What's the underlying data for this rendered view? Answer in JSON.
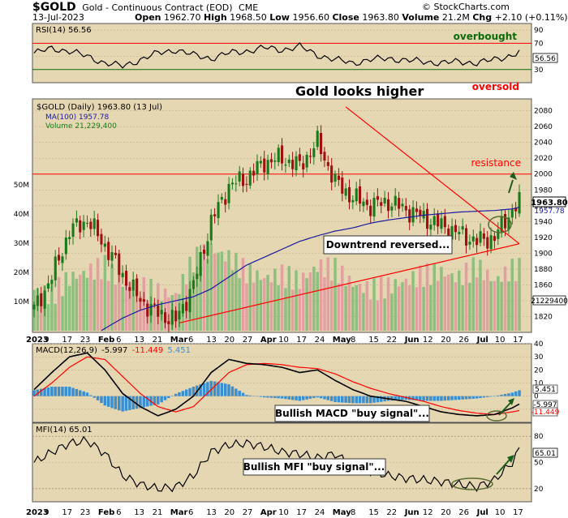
{
  "header": {
    "symbol": "$GOLD",
    "description": "Gold - Continuous Contract (EOD)",
    "exchange": "CME",
    "brand": "© StockCharts.com",
    "date": "13-Jul-2023",
    "open_label": "Open",
    "open": "1962.70",
    "high_label": "High",
    "high": "1968.50",
    "low_label": "Low",
    "low": "1956.60",
    "close_label": "Close",
    "close": "1963.80",
    "volume_label": "Volume",
    "volume": "21.2M",
    "chg_label": "Chg",
    "chg": "+2.10 (+0.11%)"
  },
  "colors": {
    "panel_bg": "#e6d7b3",
    "up_candle": "#1a7a1a",
    "down_candle": "#a01010",
    "ma_line": "#1a1aa0",
    "red_line": "#ff0000",
    "overbought": "#0b6b0b",
    "macd_hist": "#3a8fd0",
    "volume_up": "#8fbf7f",
    "volume_down": "#e3a0a0"
  },
  "chart_data": [
    {
      "type": "line",
      "name": "rsi",
      "label": "RSI(14) 56.56",
      "ylim": [
        10,
        100
      ],
      "ticks": [
        90,
        70,
        50,
        30
      ],
      "levels": [
        70,
        30
      ],
      "last_value": "56.56",
      "x_days": [
        0,
        5,
        10,
        15,
        20,
        25,
        30,
        35,
        40,
        45,
        50,
        55,
        60,
        65,
        70,
        75,
        80,
        85,
        90,
        95,
        100,
        105,
        110,
        115,
        120,
        125,
        130,
        135,
        137
      ],
      "values": [
        55,
        62,
        58,
        50,
        40,
        35,
        45,
        55,
        60,
        52,
        47,
        55,
        58,
        63,
        60,
        65,
        52,
        45,
        40,
        45,
        47,
        44,
        42,
        40,
        42,
        40,
        45,
        52,
        57
      ],
      "annotations": [
        "overbought",
        "oversold"
      ]
    },
    {
      "type": "candlestick",
      "name": "price",
      "legend": [
        "$GOLD (Daily) 1963.80 (13 Jul)",
        "MA(100) 1957.78",
        "Volume 21,229,400"
      ],
      "title": "Gold looks higher",
      "ylim": [
        1800,
        2095
      ],
      "yticks": [
        2080,
        2060,
        2040,
        2020,
        2000,
        1980,
        1960,
        1940,
        1920,
        1900,
        1880,
        1860,
        1840,
        1820
      ],
      "price_labels": [
        "1963.80",
        "1957.78"
      ],
      "resistance": 2000,
      "resistance_label": "resistance",
      "annotation_box": "Downtrend reversed...",
      "volume_ticks": [
        "50M",
        "40M",
        "30M",
        "20M",
        "10M"
      ],
      "volume_last": "21229400",
      "x_days": [
        0,
        5,
        10,
        15,
        20,
        25,
        30,
        35,
        40,
        45,
        50,
        55,
        60,
        65,
        70,
        75,
        80,
        85,
        90,
        95,
        100,
        105,
        110,
        115,
        120,
        125,
        130,
        135,
        137
      ],
      "close": [
        1829,
        1870,
        1928,
        1942,
        1910,
        1872,
        1840,
        1824,
        1815,
        1860,
        1940,
        1985,
        1995,
        2015,
        2020,
        2010,
        2040,
        1990,
        1970,
        1960,
        1965,
        1955,
        1945,
        1935,
        1925,
        1915,
        1920,
        1955,
        1964
      ],
      "ma100": [
        1745,
        1760,
        1775,
        1790,
        1805,
        1818,
        1828,
        1835,
        1840,
        1845,
        1855,
        1870,
        1885,
        1895,
        1905,
        1915,
        1922,
        1928,
        1932,
        1938,
        1942,
        1945,
        1948,
        1950,
        1952,
        1953,
        1954,
        1956,
        1958
      ],
      "volume_m": [
        14,
        12,
        18,
        20,
        22,
        16,
        15,
        13,
        12,
        24,
        28,
        25,
        20,
        18,
        19,
        17,
        22,
        21,
        16,
        14,
        15,
        17,
        19,
        20,
        18,
        22,
        17,
        21,
        21
      ],
      "trendlines": [
        {
          "name": "downtrend",
          "from": [
            "May 4",
            2085
          ],
          "to": [
            "Jul 17",
            1912
          ]
        },
        {
          "name": "uptrend",
          "from": [
            "Mar 1",
            1812
          ],
          "to": [
            "Jul 17",
            1912
          ]
        }
      ]
    },
    {
      "type": "line",
      "name": "macd",
      "label": "MACD(12,26,9)",
      "macd_value": "-5.997",
      "signal_value": "-11.449",
      "hist_value": "5.451",
      "ylim": [
        -20,
        40
      ],
      "yticks": [
        40,
        30,
        20,
        10,
        0,
        -10
      ],
      "box": "Bullish MACD \"buy signal\"...",
      "x_days": [
        0,
        5,
        10,
        15,
        20,
        25,
        30,
        35,
        40,
        45,
        50,
        55,
        60,
        65,
        70,
        75,
        80,
        85,
        90,
        95,
        100,
        105,
        110,
        115,
        120,
        125,
        130,
        135,
        137
      ],
      "macd": [
        5,
        18,
        30,
        33,
        20,
        2,
        -8,
        -15,
        -10,
        0,
        18,
        28,
        25,
        24,
        22,
        18,
        20,
        12,
        5,
        0,
        -2,
        -4,
        -8,
        -12,
        -14,
        -15,
        -14,
        -9,
        -6
      ],
      "signal": [
        0,
        10,
        22,
        30,
        28,
        15,
        2,
        -8,
        -12,
        -8,
        5,
        18,
        24,
        25,
        24,
        22,
        21,
        17,
        11,
        6,
        2,
        -1,
        -4,
        -8,
        -11,
        -13,
        -14,
        -12,
        -11
      ]
    },
    {
      "type": "line",
      "name": "mfi",
      "label": "MFI(14) 65.01",
      "ylim": [
        5,
        95
      ],
      "yticks": [
        80,
        50,
        20
      ],
      "last_value": "65.01",
      "box": "Bullish MFI \"buy signal\"...",
      "x_days": [
        0,
        5,
        10,
        15,
        20,
        25,
        30,
        35,
        40,
        45,
        50,
        55,
        60,
        65,
        70,
        75,
        80,
        85,
        90,
        95,
        100,
        105,
        110,
        115,
        120,
        125,
        130,
        135,
        137
      ],
      "values": [
        50,
        62,
        72,
        75,
        60,
        35,
        25,
        20,
        22,
        35,
        62,
        70,
        72,
        68,
        62,
        60,
        55,
        60,
        45,
        40,
        35,
        32,
        30,
        28,
        25,
        22,
        30,
        50,
        65
      ]
    }
  ],
  "x_axis": {
    "labels": [
      {
        "text": "2023",
        "bold": true
      },
      {
        "text": "9"
      },
      {
        "text": "17"
      },
      {
        "text": "23"
      },
      {
        "text": "Feb",
        "bold": true
      },
      {
        "text": "6"
      },
      {
        "text": "13"
      },
      {
        "text": "21"
      },
      {
        "text": "Mar",
        "bold": true
      },
      {
        "text": "6"
      },
      {
        "text": "13"
      },
      {
        "text": "20"
      },
      {
        "text": "27"
      },
      {
        "text": "Apr",
        "bold": true
      },
      {
        "text": "10"
      },
      {
        "text": "17"
      },
      {
        "text": "24"
      },
      {
        "text": "May",
        "bold": true
      },
      {
        "text": "8"
      },
      {
        "text": "15"
      },
      {
        "text": "22"
      },
      {
        "text": "Jun",
        "bold": true
      },
      {
        "text": "12"
      },
      {
        "text": "20"
      },
      {
        "text": "26"
      },
      {
        "text": "Jul",
        "bold": true
      },
      {
        "text": "10"
      },
      {
        "text": "17"
      }
    ]
  }
}
